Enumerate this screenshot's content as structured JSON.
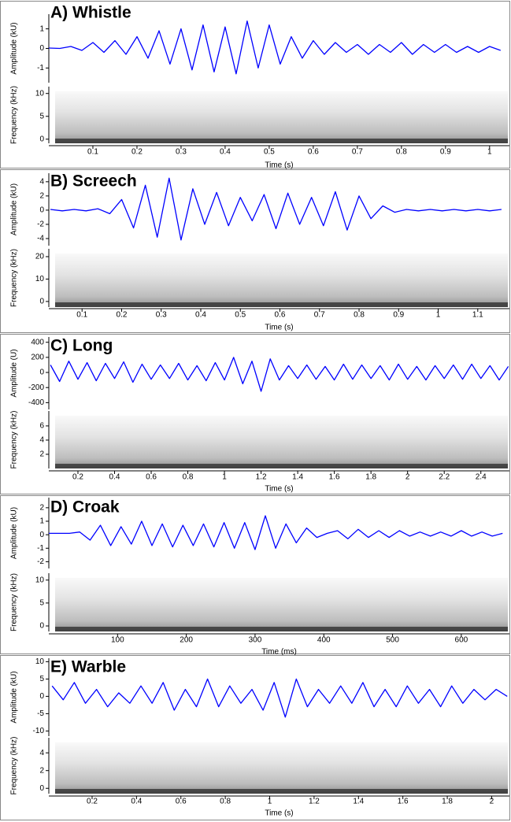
{
  "chart_data": [
    {
      "type": "line",
      "title": "A) Whistle",
      "xlabel": "Time (s)",
      "ylabel": "Amplitude (kU)",
      "color": "#0000ff",
      "xlim": [
        0,
        1.045
      ],
      "xticks": [
        0.1,
        0.2,
        0.3,
        0.4,
        0.5,
        0.6,
        0.7,
        0.8,
        0.9,
        1
      ],
      "ylim": [
        -1.75,
        1.75
      ],
      "yticks": [
        -1,
        0,
        1
      ],
      "x": [
        0,
        0.025,
        0.05,
        0.075,
        0.1,
        0.125,
        0.15,
        0.175,
        0.2,
        0.225,
        0.25,
        0.275,
        0.3,
        0.325,
        0.35,
        0.375,
        0.4,
        0.425,
        0.45,
        0.475,
        0.5,
        0.525,
        0.55,
        0.575,
        0.6,
        0.625,
        0.65,
        0.675,
        0.7,
        0.725,
        0.75,
        0.775,
        0.8,
        0.825,
        0.85,
        0.875,
        0.9,
        0.925,
        0.95,
        0.975,
        1,
        1.025
      ],
      "values": [
        0.02,
        0,
        0.1,
        -0.1,
        0.3,
        -0.2,
        0.4,
        -0.3,
        0.6,
        -0.5,
        0.9,
        -0.8,
        1.0,
        -1.1,
        1.2,
        -1.2,
        1.1,
        -1.3,
        1.4,
        -1.0,
        1.2,
        -0.8,
        0.6,
        -0.5,
        0.4,
        -0.3,
        0.3,
        -0.2,
        0.2,
        -0.3,
        0.2,
        -0.2,
        0.3,
        -0.3,
        0.2,
        -0.2,
        0.2,
        -0.2,
        0.1,
        -0.2,
        0.1,
        -0.1
      ],
      "spectrogram": {
        "ylabel": "Frequency (kHz)",
        "ylim": [
          -0.9,
          11.5
        ],
        "yticks": [
          0,
          5,
          10
        ]
      }
    },
    {
      "type": "line",
      "title": "B) Screech",
      "xlabel": "Time (s)",
      "ylabel": "Amplitude (kU)",
      "color": "#0000ff",
      "xlim": [
        0.016,
        1.18
      ],
      "xticks": [
        0.1,
        0.2,
        0.3,
        0.4,
        0.5,
        0.6,
        0.7,
        0.8,
        0.9,
        1,
        1.1
      ],
      "ylim": [
        -5,
        5.2
      ],
      "yticks": [
        -4,
        -2,
        0,
        2,
        4
      ],
      "x": [
        0.02,
        0.05,
        0.08,
        0.11,
        0.14,
        0.17,
        0.2,
        0.23,
        0.26,
        0.29,
        0.32,
        0.35,
        0.38,
        0.41,
        0.44,
        0.47,
        0.5,
        0.53,
        0.56,
        0.59,
        0.62,
        0.65,
        0.68,
        0.71,
        0.74,
        0.77,
        0.8,
        0.83,
        0.86,
        0.89,
        0.92,
        0.95,
        0.98,
        1.01,
        1.04,
        1.07,
        1.1,
        1.13,
        1.16
      ],
      "values": [
        0.1,
        -0.1,
        0.1,
        -0.1,
        0.2,
        -0.5,
        1.5,
        -2.5,
        3.5,
        -3.8,
        4.5,
        -4.2,
        3.0,
        -2.0,
        2.5,
        -2.2,
        1.8,
        -1.5,
        2.2,
        -2.6,
        2.4,
        -2.0,
        1.8,
        -2.2,
        2.6,
        -2.8,
        2.0,
        -1.2,
        0.6,
        -0.3,
        0.1,
        -0.1,
        0.1,
        -0.1,
        0.1,
        -0.1,
        0.1,
        -0.1,
        0.1
      ],
      "spectrogram": {
        "ylabel": "Frequency (kHz)",
        "ylim": [
          -2.5,
          23.5
        ],
        "yticks": [
          0,
          10,
          20
        ]
      }
    },
    {
      "type": "line",
      "title": "C) Long",
      "xlabel": "Time (s)",
      "ylabel": "Amplitude (U)",
      "color": "#0000ff",
      "xlim": [
        0.041,
        2.556
      ],
      "xticks": [
        0.2,
        0.4,
        0.6,
        0.8,
        1,
        1.2,
        1.4,
        1.6,
        1.8,
        2,
        2.2,
        2.4
      ],
      "ylim": [
        -490,
        470
      ],
      "yticks": [
        -400,
        -200,
        0,
        200,
        400
      ],
      "x": [
        0.05,
        0.1,
        0.15,
        0.2,
        0.25,
        0.3,
        0.35,
        0.4,
        0.45,
        0.5,
        0.55,
        0.6,
        0.65,
        0.7,
        0.75,
        0.8,
        0.85,
        0.9,
        0.95,
        1,
        1.05,
        1.1,
        1.15,
        1.2,
        1.25,
        1.3,
        1.35,
        1.4,
        1.45,
        1.5,
        1.55,
        1.6,
        1.65,
        1.7,
        1.75,
        1.8,
        1.85,
        1.9,
        1.95,
        2,
        2.05,
        2.1,
        2.15,
        2.2,
        2.25,
        2.3,
        2.35,
        2.4,
        2.45,
        2.5,
        2.55
      ],
      "values": [
        100,
        -120,
        150,
        -90,
        130,
        -110,
        120,
        -80,
        140,
        -130,
        110,
        -90,
        100,
        -80,
        120,
        -100,
        90,
        -110,
        130,
        -100,
        200,
        -150,
        150,
        -250,
        180,
        -100,
        90,
        -80,
        100,
        -90,
        80,
        -100,
        110,
        -90,
        100,
        -80,
        90,
        -100,
        110,
        -90,
        80,
        -100,
        90,
        -80,
        100,
        -90,
        110,
        -80,
        90,
        -100,
        80
      ],
      "spectrogram": {
        "ylabel": "Frequency (kHz)",
        "ylim": [
          0,
          8.1
        ],
        "yticks": [
          2,
          4,
          6
        ]
      }
    },
    {
      "type": "line",
      "title": "D) Croak",
      "xlabel": "Time (ms)",
      "ylabel": "Amplitude (kU)",
      "color": "#0000ff",
      "xlim": [
        0,
        670
      ],
      "xticks": [
        100,
        200,
        300,
        400,
        500,
        600
      ],
      "ylim": [
        -2.5,
        2.75
      ],
      "yticks": [
        -2,
        -1,
        0,
        1,
        2
      ],
      "x": [
        0,
        15,
        30,
        45,
        60,
        75,
        90,
        105,
        120,
        135,
        150,
        165,
        180,
        195,
        210,
        225,
        240,
        255,
        270,
        285,
        300,
        315,
        330,
        345,
        360,
        375,
        390,
        405,
        420,
        435,
        450,
        465,
        480,
        495,
        510,
        525,
        540,
        555,
        570,
        585,
        600,
        615,
        630,
        645,
        660
      ],
      "values": [
        0.1,
        0.1,
        0.1,
        0.2,
        -0.4,
        0.7,
        -0.8,
        0.6,
        -0.7,
        1.0,
        -0.8,
        0.8,
        -0.9,
        0.7,
        -0.8,
        0.8,
        -0.9,
        0.9,
        -1.0,
        0.9,
        -1.1,
        1.4,
        -1.0,
        0.8,
        -0.6,
        0.5,
        -0.2,
        0.1,
        0.3,
        -0.3,
        0.4,
        -0.2,
        0.3,
        -0.2,
        0.3,
        -0.1,
        0.2,
        -0.1,
        0.2,
        -0.1,
        0.3,
        -0.1,
        0.2,
        -0.1,
        0.1
      ],
      "spectrogram": {
        "ylabel": "Frequency (kHz)",
        "ylim": [
          -1.2,
          11.5
        ],
        "yticks": [
          0,
          5,
          10
        ]
      }
    },
    {
      "type": "line",
      "title": "E) Warble",
      "xlabel": "Time (s)",
      "ylabel": "Amplitude (kU)",
      "color": "#0000ff",
      "xlim": [
        0.005,
        2.08
      ],
      "xticks": [
        0.2,
        0.4,
        0.6,
        0.8,
        1,
        1.2,
        1.4,
        1.6,
        1.8,
        2
      ],
      "ylim": [
        -11.5,
        11
      ],
      "yticks": [
        -10,
        -5,
        0,
        5,
        10
      ],
      "x": [
        0.02,
        0.07,
        0.12,
        0.17,
        0.22,
        0.27,
        0.32,
        0.37,
        0.42,
        0.47,
        0.52,
        0.57,
        0.62,
        0.67,
        0.72,
        0.77,
        0.82,
        0.87,
        0.92,
        0.97,
        1.02,
        1.07,
        1.12,
        1.17,
        1.22,
        1.27,
        1.32,
        1.37,
        1.42,
        1.47,
        1.52,
        1.57,
        1.62,
        1.67,
        1.72,
        1.77,
        1.82,
        1.87,
        1.92,
        1.97,
        2.02,
        2.07
      ],
      "values": [
        3,
        -1,
        4,
        -2,
        2,
        -3,
        1,
        -2,
        3,
        -2,
        4,
        -4,
        2,
        -3,
        5,
        -3,
        3,
        -2,
        2,
        -4,
        4,
        -6,
        5,
        -3,
        2,
        -2,
        3,
        -2,
        4,
        -3,
        2,
        -3,
        3,
        -2,
        2,
        -3,
        3,
        -2,
        2,
        -1,
        2,
        0
      ],
      "spectrogram": {
        "ylabel": "Frequency (kHz)",
        "ylim": [
          -0.6,
          5.7
        ],
        "yticks": [
          0,
          2,
          4
        ]
      }
    }
  ]
}
